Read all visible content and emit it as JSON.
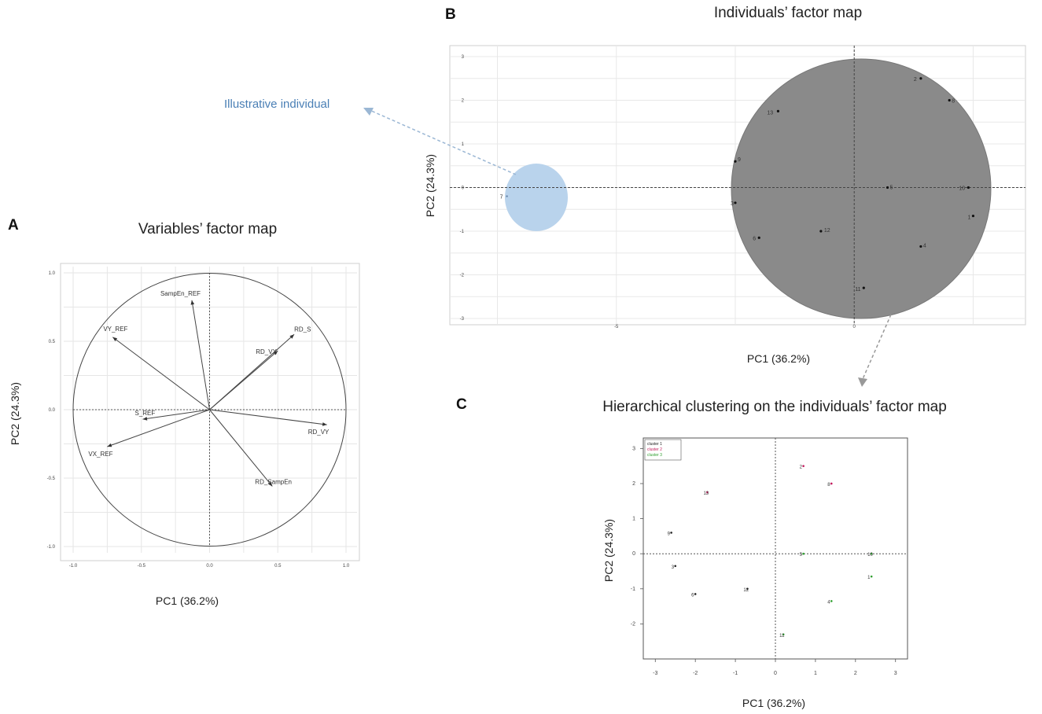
{
  "figure": {
    "panel_letters": [
      "A",
      "B",
      "C"
    ],
    "annotation": "Illustrative individual"
  },
  "colors": {
    "cluster_fill": "#8a8a8a",
    "illustrative_fill": "#b9d3ec",
    "annotation": "#4a7fb5",
    "cluster1": "#222222",
    "cluster2": "#c2185b",
    "cluster3": "#2e9e2e"
  },
  "chart_data": [
    {
      "type": "scatter",
      "panel": "A",
      "title": "Variables’ factor map",
      "xlabel": "PC1 (36.2%)",
      "ylabel": "PC2 (24.3%)",
      "xlim": [
        -1.0,
        1.0
      ],
      "ylim": [
        -1.0,
        1.0
      ],
      "x_ticks": [
        "-1.0",
        "-0.5",
        "0.0",
        "0.5",
        "1.0"
      ],
      "y_ticks": [
        "-1.0",
        "-0.5",
        "0.0",
        "0.5",
        "1.0"
      ],
      "grid": true,
      "correlation_circle": true,
      "vectors": [
        {
          "label": "SampEn_REF",
          "x": -0.13,
          "y": 0.8
        },
        {
          "label": "VY_REF",
          "x": -0.71,
          "y": 0.53
        },
        {
          "label": "RD_VX",
          "x": 0.5,
          "y": 0.43
        },
        {
          "label": "RD_S",
          "x": 0.62,
          "y": 0.55
        },
        {
          "label": "S_REF",
          "x": -0.49,
          "y": -0.07
        },
        {
          "label": "RD_VY",
          "x": 0.86,
          "y": -0.11
        },
        {
          "label": "VX_REF",
          "x": -0.75,
          "y": -0.27
        },
        {
          "label": "RD_SampEn",
          "x": 0.46,
          "y": -0.56
        }
      ]
    },
    {
      "type": "scatter",
      "panel": "B",
      "title": "Individuals’ factor map",
      "xlabel": "PC1 (36.2%)",
      "ylabel": "PC2 (24.3%)",
      "xlim": [
        -8.5,
        3.6
      ],
      "ylim": [
        -3,
        3
      ],
      "x_ticks": [
        "-5",
        "0"
      ],
      "y_ticks": [
        "-3",
        "-2",
        "-1",
        "0",
        "1",
        "2",
        "3"
      ],
      "grid": true,
      "points": [
        {
          "label": "2",
          "x": 1.4,
          "y": 2.5
        },
        {
          "label": "8",
          "x": 2.0,
          "y": 2.0
        },
        {
          "label": "13",
          "x": -1.6,
          "y": 1.75
        },
        {
          "label": "9",
          "x": -2.5,
          "y": 0.6
        },
        {
          "label": "5",
          "x": 0.7,
          "y": 0.0
        },
        {
          "label": "10",
          "x": 2.4,
          "y": 0.0
        },
        {
          "label": "3",
          "x": -2.5,
          "y": -0.35
        },
        {
          "label": "1",
          "x": 2.5,
          "y": -0.65
        },
        {
          "label": "12",
          "x": -0.7,
          "y": -1.0
        },
        {
          "label": "6",
          "x": -2.0,
          "y": -1.15
        },
        {
          "label": "4",
          "x": 1.4,
          "y": -1.35
        },
        {
          "label": "11",
          "x": 0.2,
          "y": -2.3
        },
        {
          "label": "7",
          "x": -7.3,
          "y": -0.2
        }
      ],
      "illustrative_individual": "7"
    },
    {
      "type": "scatter",
      "panel": "C",
      "title": "Hierarchical clustering on the individuals’ factor map",
      "xlabel": "PC1 (36.2%)",
      "ylabel": "PC2 (24.3%)",
      "xlim": [
        -3.3,
        3.3
      ],
      "ylim": [
        -3.0,
        3.3
      ],
      "x_ticks": [
        "-3",
        "-2",
        "-1",
        "0",
        "1",
        "2",
        "3"
      ],
      "y_ticks": [
        "3",
        "2",
        "1",
        "0",
        "-1",
        "-2"
      ],
      "legend": [
        "cluster 1",
        "cluster 2",
        "cluster 3"
      ],
      "legend_position": "top-left",
      "points": [
        {
          "label": "2",
          "x": 0.7,
          "y": 2.5,
          "cluster": 2
        },
        {
          "label": "8",
          "x": 1.4,
          "y": 2.0,
          "cluster": 2
        },
        {
          "label": "13",
          "x": -1.7,
          "y": 1.75,
          "cluster": 2
        },
        {
          "label": "9",
          "x": -2.6,
          "y": 0.6,
          "cluster": 1
        },
        {
          "label": "3",
          "x": -2.5,
          "y": -0.35,
          "cluster": 1
        },
        {
          "label": "6",
          "x": -2.0,
          "y": -1.15,
          "cluster": 1
        },
        {
          "label": "12",
          "x": -0.7,
          "y": -1.0,
          "cluster": 1
        },
        {
          "label": "5",
          "x": 0.7,
          "y": 0.0,
          "cluster": 3
        },
        {
          "label": "10",
          "x": 2.4,
          "y": 0.0,
          "cluster": 3
        },
        {
          "label": "1",
          "x": 2.4,
          "y": -0.65,
          "cluster": 3
        },
        {
          "label": "4",
          "x": 1.4,
          "y": -1.35,
          "cluster": 3
        },
        {
          "label": "11",
          "x": 0.2,
          "y": -2.3,
          "cluster": 3
        }
      ]
    }
  ]
}
